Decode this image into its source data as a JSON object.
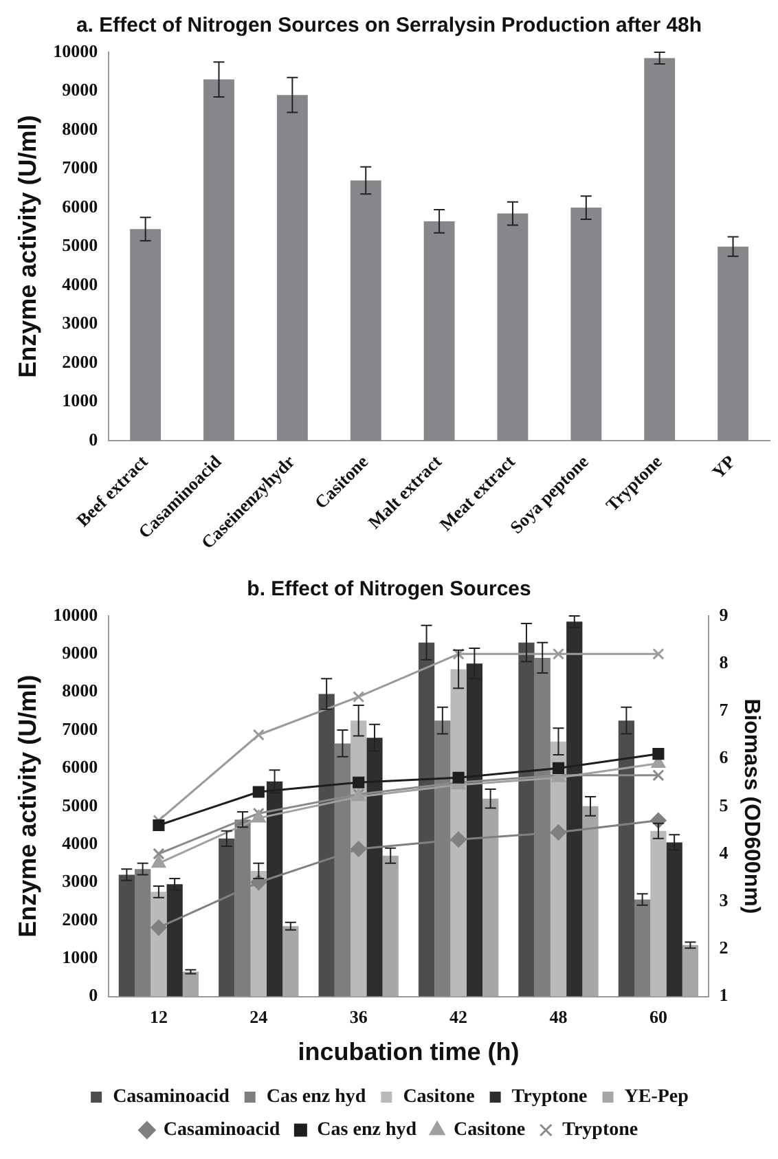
{
  "chart_data": [
    {
      "type": "bar",
      "title": "a. Effect of Nitrogen Sources on Serralysin Production after 48h",
      "ylabel": "Enzyme activity (U/ml)",
      "categories": [
        "Beef extract",
        "Casaminoacid",
        "Caseinenzyhydr",
        "Casitone",
        "Malt extract",
        "Meat extract",
        "Soya peptone",
        "Tryptone",
        "YP"
      ],
      "series": [
        {
          "color": "#86878b",
          "values": [
            5450,
            9300,
            8900,
            6700,
            5650,
            5850,
            6000,
            9850,
            5000
          ],
          "errors": [
            300,
            450,
            450,
            350,
            300,
            300,
            300,
            150,
            250
          ]
        }
      ],
      "ylim": [
        0,
        10000
      ],
      "yticks": [
        0,
        1000,
        2000,
        3000,
        4000,
        5000,
        6000,
        7000,
        8000,
        9000,
        10000
      ],
      "grid": false,
      "legend": false
    },
    {
      "type": "bar",
      "title": "b. Effect of Nitrogen Sources",
      "xlabel": "incubation time (h)",
      "ylabel": "Enzyme activity (U/ml)",
      "y2label": "Biomass (OD600nm)",
      "categories": [
        "12",
        "24",
        "36",
        "42",
        "48",
        "60"
      ],
      "series": [
        {
          "name": "Casaminoacid",
          "color": "#4d4d4f",
          "values": [
            3200,
            4150,
            7950,
            9300,
            9300,
            7250
          ],
          "errors": [
            150,
            200,
            400,
            450,
            500,
            350
          ]
        },
        {
          "name": "Cas enz hyd",
          "color": "#7d7e80",
          "values": [
            3350,
            4650,
            6650,
            7250,
            8900,
            2550
          ],
          "errors": [
            150,
            200,
            350,
            350,
            400,
            150
          ]
        },
        {
          "name": "Casitone",
          "color": "#b9babc",
          "values": [
            2750,
            3300,
            7250,
            8600,
            6700,
            4350
          ],
          "errors": [
            150,
            200,
            400,
            500,
            350,
            200
          ]
        },
        {
          "name": "Tryptone",
          "color": "#2e2e30",
          "values": [
            2950,
            5650,
            6800,
            8750,
            9850,
            4050
          ],
          "errors": [
            150,
            300,
            350,
            400,
            150,
            200
          ]
        },
        {
          "name": "YE-Pep",
          "color": "#a6a7a9",
          "values": [
            650,
            1850,
            3700,
            5200,
            5000,
            1350
          ],
          "errors": [
            50,
            100,
            200,
            250,
            250,
            80
          ]
        },
        {
          "name": "Casaminoacid",
          "type": "line",
          "axis": "y2",
          "marker": "diamond",
          "color": "#808082",
          "values": [
            2.45,
            3.4,
            4.1,
            4.3,
            4.45,
            4.7
          ]
        },
        {
          "name": "Cas enz hyd",
          "type": "line",
          "axis": "y2",
          "marker": "square",
          "color": "#1e1e20",
          "values": [
            4.6,
            5.3,
            5.5,
            5.6,
            5.8,
            6.1
          ]
        },
        {
          "name": "Casitone",
          "type": "line",
          "axis": "y2",
          "marker": "triangle",
          "color": "#a0a0a2",
          "values": [
            3.8,
            4.75,
            5.2,
            5.45,
            5.6,
            5.9
          ]
        },
        {
          "name": "Tryptone",
          "type": "line",
          "axis": "y2",
          "marker": "cross",
          "color": "#8a8a8c",
          "values": [
            4.0,
            4.85,
            5.25,
            5.5,
            5.65,
            5.65
          ]
        },
        {
          "type": "line",
          "axis": "y2",
          "marker": "cross",
          "color": "#9a9a9c",
          "values": [
            4.7,
            6.5,
            7.3,
            8.2,
            8.2,
            8.2
          ]
        }
      ],
      "ylim": [
        0,
        10000
      ],
      "yticks": [
        0,
        1000,
        2000,
        3000,
        4000,
        5000,
        6000,
        7000,
        8000,
        9000,
        10000
      ],
      "y2lim": [
        1,
        9
      ],
      "y2ticks": [
        1,
        2,
        3,
        4,
        5,
        6,
        7,
        8,
        9
      ],
      "grid": false,
      "legend": "bottom"
    }
  ]
}
